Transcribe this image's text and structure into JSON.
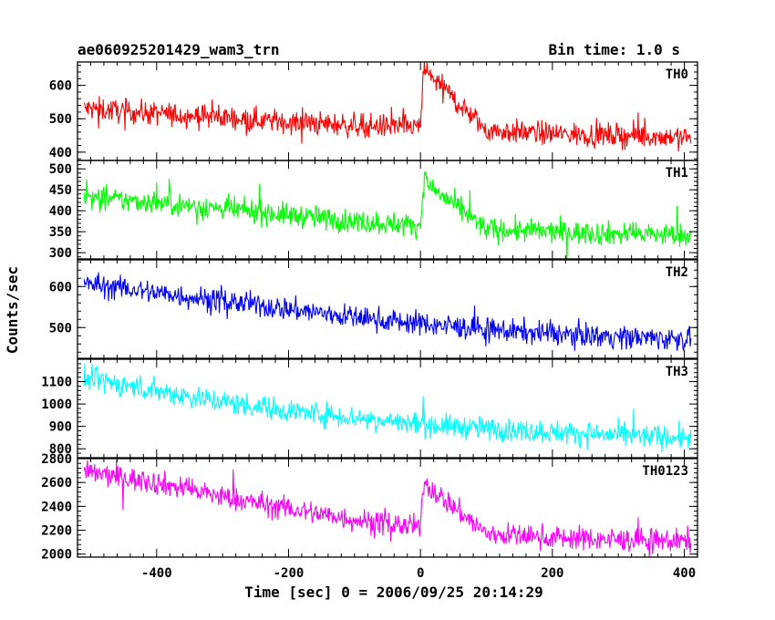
{
  "chart_data": {
    "type": "line",
    "title": "ae060925201429_wam3_trn",
    "subtitle": "Bin time: 1.0 s",
    "xlabel": "Time [sec] 0 = 2006/09/25 20:14:29",
    "ylabel": "Counts/sec",
    "xlim": [
      -520,
      420
    ],
    "xticks": [
      -400,
      -200,
      0,
      200,
      400
    ],
    "grid": false,
    "panels": [
      {
        "name": "TH0",
        "color": "#ff0000",
        "ylim": [
          375,
          670
        ],
        "yticks": [
          400,
          500,
          600
        ],
        "x": [
          -500,
          -400,
          -300,
          -200,
          -100,
          0,
          5,
          100,
          200,
          300,
          400
        ],
        "y": [
          530,
          515,
          505,
          490,
          480,
          475,
          650,
          465,
          455,
          450,
          445
        ]
      },
      {
        "name": "TH1",
        "color": "#00ff00",
        "ylim": [
          285,
          520
        ],
        "yticks": [
          300,
          350,
          400,
          450,
          500
        ],
        "x": [
          -500,
          -400,
          -300,
          -200,
          -100,
          0,
          5,
          100,
          200,
          300,
          400
        ],
        "y": [
          430,
          420,
          405,
          390,
          375,
          365,
          470,
          355,
          350,
          345,
          342
        ]
      },
      {
        "name": "TH2",
        "color": "#0000ff",
        "ylim": [
          425,
          665
        ],
        "yticks": [
          500,
          600
        ],
        "x": [
          -500,
          -400,
          -300,
          -200,
          -100,
          0,
          100,
          200,
          300,
          400
        ],
        "y": [
          605,
          585,
          565,
          545,
          525,
          510,
          495,
          485,
          478,
          472
        ]
      },
      {
        "name": "TH3",
        "color": "#00ffff",
        "ylim": [
          760,
          1200
        ],
        "yticks": [
          800,
          900,
          1000,
          1100
        ],
        "x": [
          -500,
          -400,
          -300,
          -200,
          -100,
          0,
          100,
          200,
          300,
          400
        ],
        "y": [
          1110,
          1060,
          1010,
          970,
          940,
          910,
          890,
          875,
          860,
          850
        ]
      },
      {
        "name": "TH0123",
        "color": "#ff00ff",
        "ylim": [
          1975,
          2800
        ],
        "yticks": [
          2000,
          2200,
          2400,
          2600,
          2800
        ],
        "x": [
          -500,
          -400,
          -300,
          -200,
          -100,
          0,
          5,
          100,
          200,
          300,
          400
        ],
        "y": [
          2680,
          2600,
          2480,
          2380,
          2290,
          2220,
          2600,
          2170,
          2140,
          2120,
          2110
        ]
      }
    ]
  }
}
